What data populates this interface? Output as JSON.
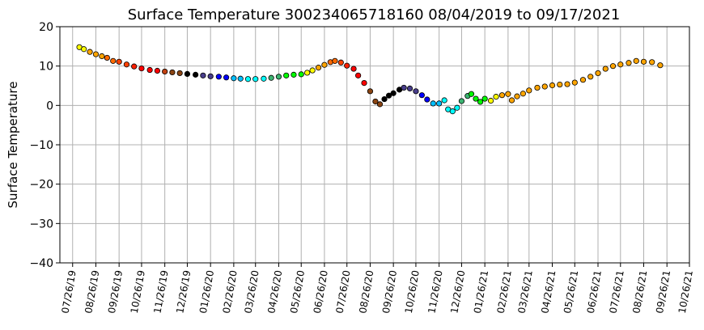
{
  "chart_data": {
    "type": "scatter",
    "title": "Surface Temperature 300234065718160  08/04/2019 to 09/17/2021",
    "xlabel": "",
    "ylabel": "Surface Temperature",
    "ylim": [
      -40,
      20
    ],
    "xlim": [
      "2019-07-09",
      "2021-10-26"
    ],
    "grid": true,
    "yticks": [
      20,
      10,
      0,
      -10,
      -20,
      -30,
      -40
    ],
    "xticks": [
      "07/26/19",
      "08/26/19",
      "09/26/19",
      "10/26/19",
      "11/26/19",
      "12/26/19",
      "01/26/20",
      "02/26/20",
      "03/26/20",
      "04/26/20",
      "05/26/20",
      "06/26/20",
      "07/26/20",
      "08/26/20",
      "09/26/20",
      "10/26/20",
      "11/26/20",
      "12/26/20",
      "01/26/21",
      "02/26/21",
      "03/26/21",
      "04/26/21",
      "05/26/21",
      "06/26/21",
      "07/26/21",
      "08/26/21",
      "09/26/21",
      "10/26/21"
    ],
    "x": [
      "2019-08-04",
      "2019-08-10",
      "2019-08-18",
      "2019-08-26",
      "2019-09-03",
      "2019-09-10",
      "2019-09-18",
      "2019-09-26",
      "2019-10-06",
      "2019-10-16",
      "2019-10-26",
      "2019-11-06",
      "2019-11-16",
      "2019-11-26",
      "2019-12-06",
      "2019-12-16",
      "2019-12-26",
      "2020-01-06",
      "2020-01-16",
      "2020-01-26",
      "2020-02-06",
      "2020-02-16",
      "2020-02-26",
      "2020-03-06",
      "2020-03-16",
      "2020-03-26",
      "2020-04-06",
      "2020-04-16",
      "2020-04-26",
      "2020-05-06",
      "2020-05-16",
      "2020-05-26",
      "2020-06-03",
      "2020-06-10",
      "2020-06-18",
      "2020-06-26",
      "2020-07-04",
      "2020-07-10",
      "2020-07-18",
      "2020-07-26",
      "2020-08-04",
      "2020-08-10",
      "2020-08-18",
      "2020-08-26",
      "2020-09-02",
      "2020-09-08",
      "2020-09-14",
      "2020-09-20",
      "2020-09-26",
      "2020-10-04",
      "2020-10-10",
      "2020-10-18",
      "2020-10-26",
      "2020-11-03",
      "2020-11-10",
      "2020-11-18",
      "2020-11-26",
      "2020-12-03",
      "2020-12-08",
      "2020-12-14",
      "2020-12-20",
      "2020-12-26",
      "2021-01-03",
      "2021-01-08",
      "2021-01-14",
      "2021-01-20",
      "2021-01-26",
      "2021-02-03",
      "2021-02-10",
      "2021-02-18",
      "2021-02-26",
      "2021-03-03",
      "2021-03-10",
      "2021-03-18",
      "2021-03-26",
      "2021-04-06",
      "2021-04-16",
      "2021-04-26",
      "2021-05-06",
      "2021-05-16",
      "2021-05-26",
      "2021-06-06",
      "2021-06-16",
      "2021-06-26",
      "2021-07-06",
      "2021-07-16",
      "2021-07-26",
      "2021-08-06",
      "2021-08-16",
      "2021-08-26",
      "2021-09-06",
      "2021-09-17"
    ],
    "y": [
      14.8,
      14.3,
      13.6,
      13.0,
      12.5,
      12.1,
      11.3,
      11.1,
      10.4,
      9.9,
      9.4,
      9.0,
      8.8,
      8.6,
      8.4,
      8.2,
      8.0,
      7.8,
      7.6,
      7.4,
      7.3,
      7.1,
      6.9,
      6.8,
      6.7,
      6.7,
      6.8,
      7.0,
      7.3,
      7.6,
      7.8,
      7.9,
      8.3,
      8.9,
      9.6,
      10.3,
      11.0,
      11.3,
      10.9,
      10.1,
      9.3,
      7.6,
      5.7,
      3.6,
      1.0,
      0.3,
      1.6,
      2.5,
      3.1,
      4.0,
      4.5,
      4.3,
      3.6,
      2.6,
      1.5,
      0.5,
      0.5,
      1.3,
      -1.0,
      -1.5,
      -0.6,
      1.1,
      2.4,
      2.9,
      1.7,
      0.9,
      1.7,
      1.2,
      2.2,
      2.6,
      2.9,
      1.3,
      2.3,
      3.0,
      3.8,
      4.5,
      4.8,
      5.1,
      5.3,
      5.4,
      5.8,
      6.5,
      7.3,
      8.2,
      9.3,
      10.0,
      10.4,
      10.8,
      11.3,
      11.1,
      11.0,
      10.2
    ],
    "colors": [
      "#ffff00",
      "#ffff00",
      "#ffa500",
      "#ffa500",
      "#ffa500",
      "#ff6a00",
      "#ff6a00",
      "#ff4000",
      "#ff4000",
      "#ff2000",
      "#ff0000",
      "#ff0000",
      "#ff0000",
      "#c04010",
      "#8b4513",
      "#8b4513",
      "#000000",
      "#000000",
      "#483d8b",
      "#483d8b",
      "#0000ff",
      "#0000ff",
      "#00bfff",
      "#00bfff",
      "#00ffff",
      "#00ffff",
      "#00ffff",
      "#3cb371",
      "#3cb371",
      "#00ff00",
      "#00ff00",
      "#00ff00",
      "#ffff00",
      "#ffff00",
      "#ffa500",
      "#ffa500",
      "#ff6a00",
      "#ff6a00",
      "#ff4000",
      "#ff2000",
      "#ff0000",
      "#ff0000",
      "#ff0000",
      "#8b4513",
      "#8b4513",
      "#8b4513",
      "#000000",
      "#000000",
      "#000000",
      "#000000",
      "#483d8b",
      "#483d8b",
      "#483d8b",
      "#0000ff",
      "#0000ff",
      "#00bfff",
      "#00bfff",
      "#00ffff",
      "#00ffff",
      "#00ffff",
      "#00ffff",
      "#3cb371",
      "#3cb371",
      "#00ff00",
      "#00ff00",
      "#00ff00",
      "#00ff00",
      "#ffff00",
      "#ffff00",
      "#ffa500",
      "#ffa500",
      "#ffa500",
      "#ffa500",
      "#ffa500",
      "#ffa500",
      "#ffa500",
      "#ffa500",
      "#ffa500",
      "#ffa500",
      "#ffa500",
      "#ffa500",
      "#ffa500",
      "#ffa500",
      "#ffa500",
      "#ffa500",
      "#ffa500",
      "#ffa500",
      "#ffa500",
      "#ffa500",
      "#ffa500",
      "#ffa500",
      "#ffa500"
    ]
  }
}
